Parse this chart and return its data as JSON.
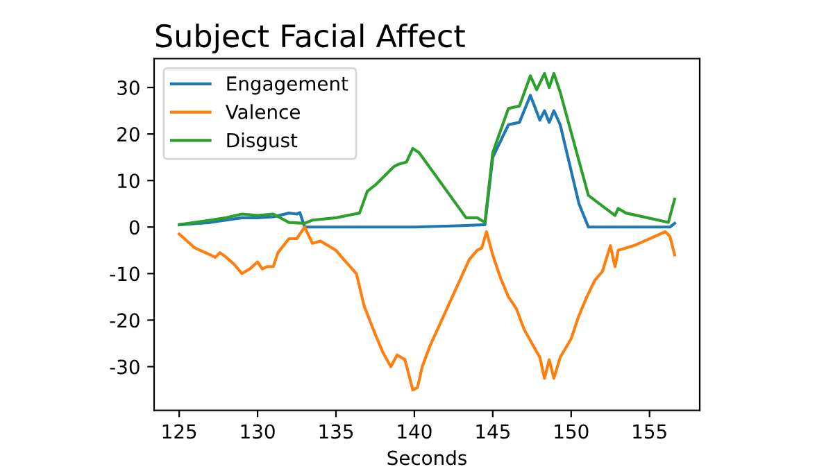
{
  "chart_data": {
    "type": "line",
    "title": "Subject Facial Affect",
    "xlabel": "Seconds",
    "xlim": [
      123.4,
      158.2
    ],
    "ylim": [
      -39.4,
      36.2
    ],
    "xticks": [
      125,
      130,
      135,
      140,
      145,
      150,
      155
    ],
    "yticks": [
      -30,
      -20,
      -10,
      0,
      10,
      20,
      30
    ],
    "legend": "top left",
    "grid": false,
    "marker": "none",
    "line_style": "solid",
    "series": [
      {
        "name": "Engagement",
        "color": "#1f77b4",
        "x": [
          125,
          127,
          128,
          129,
          130,
          131,
          132,
          132.5,
          132.7,
          133,
          140,
          143,
          144.5,
          145,
          146,
          146.7,
          147.4,
          148,
          148.3,
          148.6,
          148.9,
          149.3,
          150.5,
          151.1,
          156.3,
          156.6
        ],
        "values": [
          0.5,
          1,
          1.5,
          2,
          2,
          2.2,
          3,
          2.8,
          3.1,
          0,
          0,
          0.3,
          0.5,
          15,
          22,
          22.5,
          28.3,
          23,
          25,
          22.5,
          25,
          22,
          5,
          0,
          0,
          0.8
        ]
      },
      {
        "name": "Valence",
        "color": "#ff7f0e",
        "x": [
          125,
          126,
          127,
          127.3,
          127.6,
          128,
          128.5,
          129,
          129.5,
          130,
          130.3,
          130.6,
          131,
          131.3,
          132,
          132.5,
          133,
          133.5,
          134,
          135,
          135.5,
          136.3,
          136.8,
          137.5,
          138,
          138.5,
          138.9,
          139.4,
          139.9,
          140.2,
          140.5,
          141,
          143.5,
          144,
          144.3,
          144.6,
          145,
          145.5,
          146,
          146.5,
          147,
          147.5,
          148,
          148.3,
          148.6,
          148.9,
          149.3,
          150,
          150.5,
          151,
          151.5,
          152,
          152.5,
          152.8,
          153,
          154,
          155,
          156,
          156.3,
          156.6
        ],
        "values": [
          -1.5,
          -4.5,
          -6,
          -6.5,
          -5.5,
          -6.5,
          -8,
          -10,
          -9,
          -7.5,
          -9,
          -8.5,
          -8.5,
          -5.5,
          -2.5,
          -2.5,
          0,
          -3.5,
          -3,
          -5,
          -7,
          -10,
          -17,
          -23,
          -27,
          -30,
          -27.5,
          -28.5,
          -35,
          -34.5,
          -30,
          -25.5,
          -7,
          -5,
          -4.5,
          -1,
          -6,
          -11,
          -15,
          -17.5,
          -22,
          -25,
          -28,
          -32.5,
          -28.5,
          -32.5,
          -28,
          -24,
          -19,
          -15,
          -11.5,
          -9.5,
          -4,
          -8.5,
          -5,
          -4,
          -2.5,
          -1,
          -2,
          -6
        ]
      },
      {
        "name": "Disgust",
        "color": "#2ca02c",
        "x": [
          125,
          127,
          128,
          129,
          130,
          131,
          132,
          133,
          133.5,
          135,
          136.5,
          137,
          137.5,
          138.1,
          138.7,
          139,
          139.5,
          139.9,
          140.3,
          143.3,
          144,
          144.5,
          145,
          146,
          146.7,
          147.4,
          147.8,
          148.3,
          148.6,
          148.9,
          149.3,
          151.1,
          152,
          152.8,
          153,
          153.5,
          156.2,
          156.6
        ],
        "values": [
          0.5,
          1.5,
          2,
          2.8,
          2.5,
          2.8,
          1,
          0.8,
          1.5,
          2,
          3,
          7.7,
          9,
          11,
          13,
          13.5,
          14,
          16.9,
          16,
          2,
          2,
          1,
          16,
          25.5,
          26,
          32.5,
          29.5,
          33,
          30,
          33,
          29,
          6.8,
          4.5,
          2.5,
          4,
          3,
          1,
          6
        ]
      }
    ]
  }
}
